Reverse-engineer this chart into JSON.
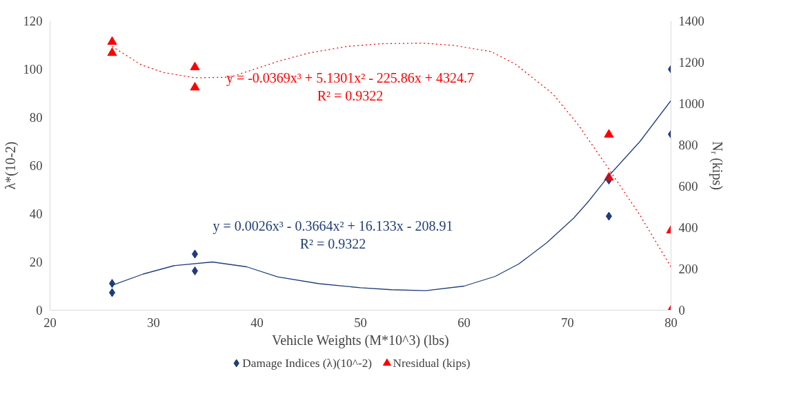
{
  "chart_data": {
    "type": "scatter",
    "xlabel": "Vehicle Weights (M*10^3) (lbs)",
    "ylabel": "λ*(10-2)",
    "y2label": "Nᵣ (kips)",
    "xlim": [
      20,
      80
    ],
    "xticks": [
      20,
      30,
      40,
      50,
      60,
      70,
      80
    ],
    "ylim": [
      0,
      120
    ],
    "yticks": [
      0,
      20,
      40,
      60,
      80,
      100,
      120
    ],
    "y2lim": [
      0,
      1400
    ],
    "y2ticks": [
      0,
      200,
      400,
      600,
      800,
      1000,
      1200,
      1400
    ],
    "grid": false,
    "legend": "bottom",
    "series": [
      {
        "name": "Damage Indices (λ)(10^-2)",
        "marker": "diamond",
        "color": "#1f3d7a",
        "x": [
          26,
          26,
          34,
          34,
          74,
          74,
          80,
          80
        ],
        "values": [
          11.1,
          7.3,
          23.3,
          16.3,
          54,
          39,
          100,
          73
        ]
      },
      {
        "name": "Nresidual  (kips)",
        "marker": "triangle",
        "color": "#ff0000",
        "axis": "y2",
        "x": [
          26,
          26,
          34,
          34,
          74,
          74,
          80,
          80
        ],
        "values": [
          1299,
          1245,
          1176,
          1078,
          850,
          642,
          386,
          0
        ]
      },
      {
        "type": "line",
        "line_style": "solid",
        "color": "#1f3d7a",
        "x": [
          26,
          29,
          32,
          35.7,
          39,
          42,
          46,
          50,
          53,
          56.3,
          60,
          63,
          65.3,
          68,
          70.6,
          72,
          74,
          77,
          80
        ],
        "values": [
          10.3,
          15,
          18.5,
          20,
          18,
          13.8,
          11,
          9.3,
          8.5,
          8.1,
          10,
          14,
          19.2,
          28,
          38.2,
          45,
          55.8,
          70,
          87
        ]
      },
      {
        "type": "line",
        "line_style": "dotted",
        "color": "#ff0000",
        "axis": "y2",
        "x": [
          26,
          28.8,
          31,
          34,
          37.4,
          42,
          45,
          48.7,
          52,
          56,
          59,
          62.6,
          65,
          68.6,
          71,
          74,
          77,
          80
        ],
        "values": [
          1277,
          1188,
          1150,
          1125,
          1128,
          1204,
          1245,
          1277,
          1290,
          1293,
          1282,
          1252,
          1190,
          1046,
          900,
          683,
          460,
          209
        ]
      }
    ],
    "annotations": [
      "y = 0.0026x³ - 0.3664x² + 16.133x - 208.91\nR² = 0.9322",
      "y = -0.0369x³ + 5.1301x² - 225.86x + 4324.7\nR² = 0.9322"
    ]
  }
}
